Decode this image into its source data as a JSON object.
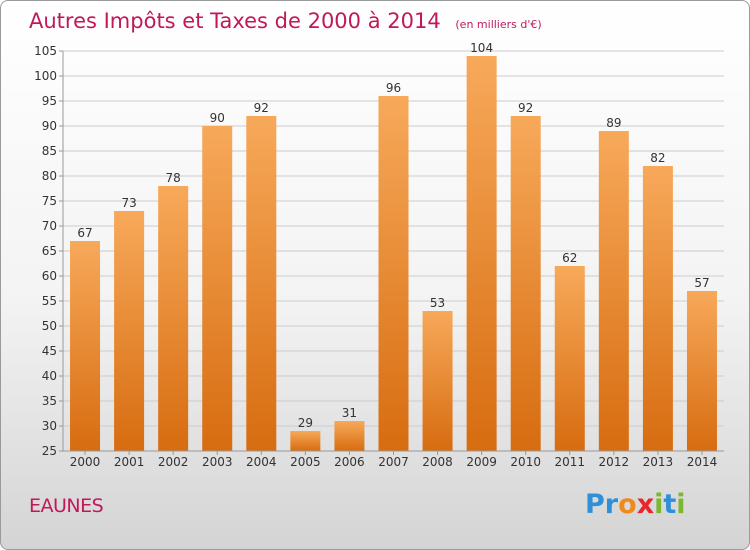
{
  "chart_data": {
    "type": "bar",
    "title": "Autres Impôts et Taxes de 2000 à 2014",
    "subtitle": "(en milliers d'€)",
    "categories": [
      "2000",
      "2001",
      "2002",
      "2003",
      "2004",
      "2005",
      "2006",
      "2007",
      "2008",
      "2009",
      "2010",
      "2011",
      "2012",
      "2013",
      "2014"
    ],
    "values": [
      67,
      73,
      78,
      90,
      92,
      29,
      31,
      96,
      53,
      104,
      92,
      62,
      89,
      82,
      57
    ],
    "ylim": [
      25,
      105
    ],
    "yticks": [
      25,
      30,
      35,
      40,
      45,
      50,
      55,
      60,
      65,
      70,
      75,
      80,
      85,
      90,
      95,
      100,
      105
    ],
    "xlabel": "",
    "ylabel": "",
    "grid": true,
    "colors": {
      "bar_top": "#f7a95a",
      "bar_bottom": "#d76c10",
      "grid": "#cccccc",
      "axis": "#999999"
    }
  },
  "footer": {
    "place": "EAUNES",
    "brand_letters": [
      {
        "ch": "P",
        "color": "#2f8fd8"
      },
      {
        "ch": "r",
        "color": "#2f8fd8"
      },
      {
        "ch": "o",
        "color": "#f08a1c"
      },
      {
        "ch": "x",
        "color": "#e7262d"
      },
      {
        "ch": "i",
        "color": "#7cb82f"
      },
      {
        "ch": "t",
        "color": "#2f8fd8"
      },
      {
        "ch": "i",
        "color": "#7cb82f"
      }
    ]
  }
}
